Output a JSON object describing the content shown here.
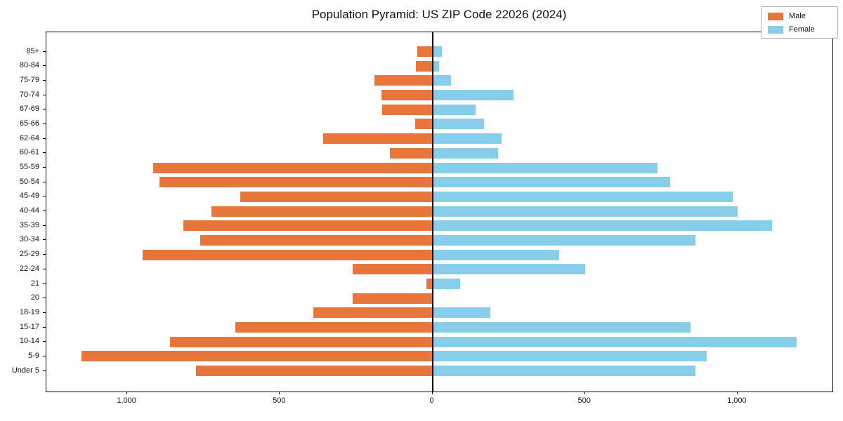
{
  "title": "Population Pyramid: US ZIP Code 22026 (2024)",
  "legend": {
    "male_label": "Male",
    "female_label": "Female"
  },
  "colors": {
    "male": "#e8763b",
    "female": "#87ceeb",
    "axis": "#000000",
    "frame": "#000000"
  },
  "chart_data": {
    "type": "bar",
    "variant": "population-pyramid",
    "title": "Population Pyramid: US ZIP Code 22026 (2024)",
    "xlabel": "",
    "ylabel": "",
    "grid": false,
    "legend_position": "upper-right",
    "xlim": [
      -1265,
      1311
    ],
    "categories": [
      "85+",
      "80-84",
      "75-79",
      "70-74",
      "67-69",
      "65-66",
      "62-64",
      "60-61",
      "55-59",
      "50-54",
      "45-49",
      "40-44",
      "35-39",
      "30-34",
      "25-29",
      "22-24",
      "21",
      "20",
      "18-19",
      "15-17",
      "10-14",
      "5-9",
      "Under 5"
    ],
    "series": [
      {
        "name": "Male",
        "direction": "left",
        "color": "#e8763b",
        "values": [
          50,
          55,
          190,
          167,
          165,
          57,
          357,
          140,
          915,
          895,
          630,
          725,
          817,
          762,
          950,
          262,
          20,
          262,
          390,
          645,
          860,
          1150,
          775
        ]
      },
      {
        "name": "Female",
        "direction": "right",
        "color": "#87ceeb",
        "values": [
          32,
          21,
          62,
          265,
          142,
          170,
          227,
          216,
          737,
          780,
          985,
          1000,
          1114,
          861,
          415,
          500,
          90,
          0,
          190,
          845,
          1193,
          900,
          861
        ]
      }
    ],
    "x_ticks": [
      {
        "value": -1000,
        "label": "1,000"
      },
      {
        "value": -500,
        "label": "500"
      },
      {
        "value": 0,
        "label": "0"
      },
      {
        "value": 500,
        "label": "500"
      },
      {
        "value": 1000,
        "label": "1,000"
      }
    ]
  }
}
